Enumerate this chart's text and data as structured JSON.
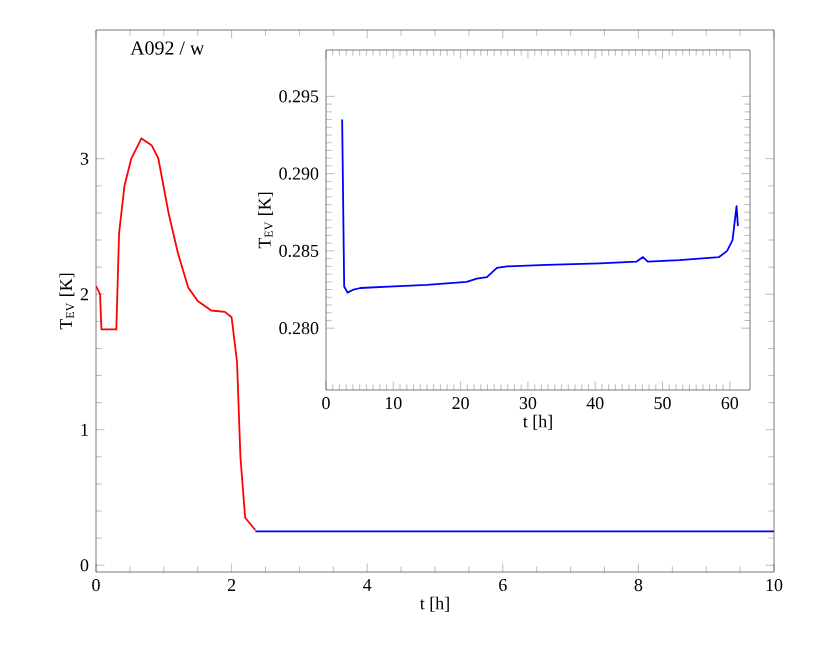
{
  "chart_data": [
    {
      "type": "line",
      "title": "A092 / w",
      "xlabel": "t [h]",
      "ylabel": "T$_{EV}$ [K]",
      "xlim": [
        0,
        10
      ],
      "ylim": [
        -0.05,
        3.95
      ],
      "xticks": [
        0,
        2,
        4,
        6,
        8,
        10
      ],
      "yticks": [
        0,
        1,
        2,
        3
      ],
      "marker": "none",
      "line_style": "solid",
      "series": [
        {
          "color": "#ff0000",
          "x": [
            0,
            0.06,
            0.08,
            0.3,
            0.34,
            0.42,
            0.52,
            0.62,
            0.67,
            0.82,
            0.92,
            1.07,
            1.21,
            1.36,
            1.5,
            1.7,
            1.9,
            2.0,
            2.08,
            2.13,
            2.2,
            2.35
          ],
          "values": [
            2.06,
            2.0,
            1.74,
            1.74,
            2.45,
            2.8,
            3.0,
            3.1,
            3.15,
            3.1,
            3.0,
            2.6,
            2.3,
            2.05,
            1.95,
            1.88,
            1.87,
            1.83,
            1.5,
            0.8,
            0.35,
            0.26
          ]
        },
        {
          "color": "#0000ff",
          "x": [
            2.35,
            4,
            6,
            8,
            10
          ],
          "values": [
            0.25,
            0.25,
            0.25,
            0.25,
            0.25
          ]
        }
      ]
    },
    {
      "type": "line",
      "xlabel": "t [h]",
      "ylabel": "T$_{EV}$ [K]",
      "xlim": [
        0,
        63
      ],
      "ylim": [
        0.276,
        0.298
      ],
      "xticks": [
        0,
        10,
        20,
        30,
        40,
        50,
        60
      ],
      "yticks": [
        {
          "value": 0.28,
          "label": "0.280"
        },
        {
          "value": 0.285,
          "label": "0.285"
        },
        {
          "value": 0.29,
          "label": "0.290"
        },
        {
          "value": 0.295,
          "label": "0.295"
        }
      ],
      "marker": "none",
      "line_style": "solid",
      "series": [
        {
          "color": "#0000ff",
          "x": [
            2.4,
            2.7,
            3.2,
            4.1,
            5.1,
            10.1,
            15,
            20.9,
            22.4,
            23.9,
            25.4,
            26.9,
            32.8,
            40.7,
            46.1,
            47.1,
            47.8,
            52.5,
            58.4,
            59.6,
            60.4,
            61,
            61.2
          ],
          "values": [
            0.2935,
            0.2827,
            0.2823,
            0.2825,
            0.2826,
            0.2827,
            0.2828,
            0.283,
            0.2832,
            0.2833,
            0.2839,
            0.284,
            0.2841,
            0.2842,
            0.2843,
            0.2846,
            0.2843,
            0.2844,
            0.2846,
            0.285,
            0.2857,
            0.2879,
            0.2866
          ]
        }
      ]
    }
  ]
}
